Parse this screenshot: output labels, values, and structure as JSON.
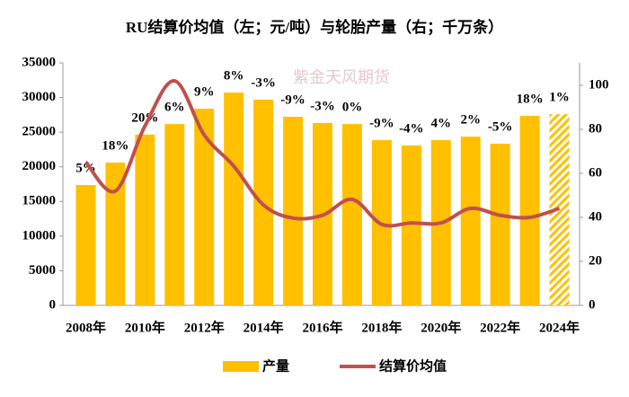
{
  "chart_data": {
    "type": "bar_line",
    "title": "RU结算价均值（左；元/吨）与轮胎产量（右；千万条）",
    "watermark": "紫金天风期货",
    "categories": [
      "2008年",
      null,
      "2010年",
      null,
      "2012年",
      null,
      "2014年",
      null,
      "2016年",
      null,
      "2018年",
      null,
      "2020年",
      null,
      "2022年",
      null,
      "2024年"
    ],
    "series": [
      {
        "name": "产量",
        "type": "bar",
        "axis": "y2",
        "color": "#ffc000",
        "values": [
          54.7,
          64.9,
          77.6,
          82.4,
          89.4,
          96.7,
          93.5,
          85.7,
          82.9,
          82.4,
          75.1,
          72.7,
          75.1,
          76.7,
          73.5,
          86.1,
          86.9
        ],
        "growth_labels": [
          "5%",
          "18%",
          "20%",
          "6%",
          "9%",
          "8%",
          "-3%",
          "-9%",
          "-3%",
          "0%",
          "-9%",
          "-4%",
          "4%",
          "2%",
          "-5%",
          "18%",
          "1%"
        ]
      },
      {
        "name": "结算价均值",
        "type": "line",
        "axis": "y",
        "color": "#c0504d",
        "values": [
          20700,
          16500,
          25900,
          32400,
          24600,
          20100,
          14500,
          12600,
          13000,
          15300,
          11700,
          11900,
          11900,
          14000,
          13000,
          12700,
          14000
        ]
      }
    ],
    "ylim": [
      0,
      35000
    ],
    "yticks": [
      0,
      5000,
      10000,
      15000,
      20000,
      25000,
      30000,
      35000
    ],
    "y2lim": [
      0,
      100
    ],
    "y2ticks": [
      0,
      20,
      40,
      60,
      80,
      100
    ],
    "legend": "bottom"
  }
}
